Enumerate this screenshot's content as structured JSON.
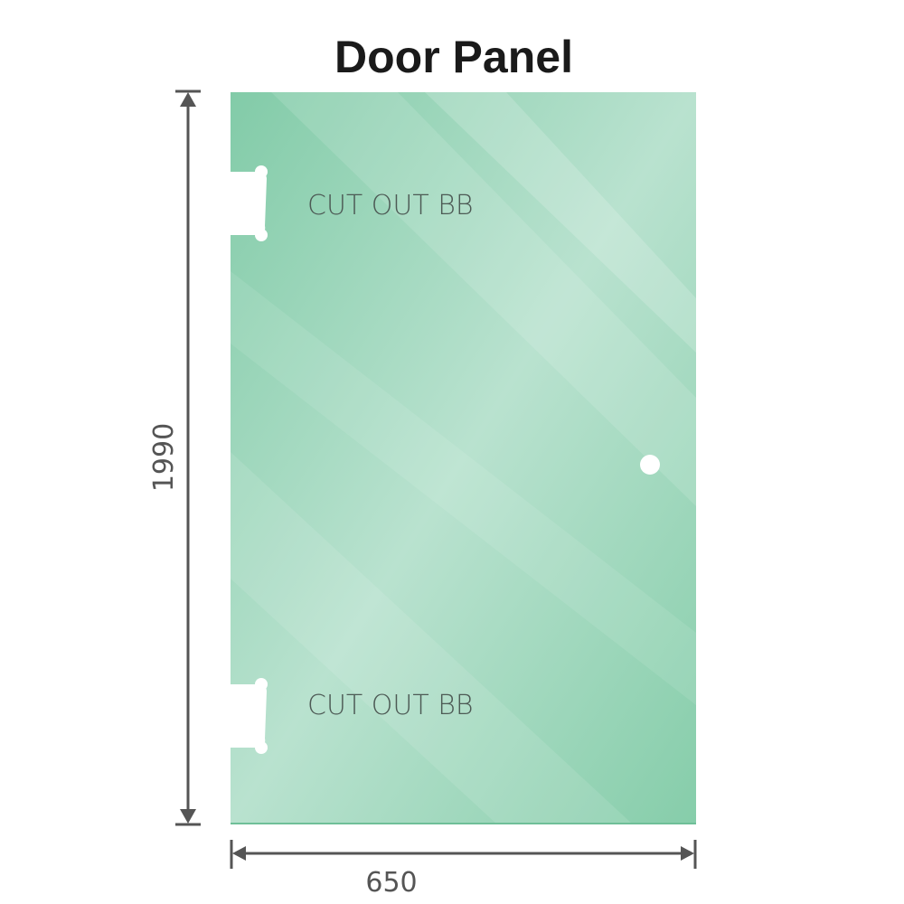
{
  "title": "Door Panel",
  "cutouts": [
    {
      "label": "CUT OUT BB"
    },
    {
      "label": "CUT OUT BB"
    }
  ],
  "dimensions": {
    "height": "1990",
    "width": "650"
  },
  "colors": {
    "glass": "#8fd0b0",
    "glass_light": "#c4e6d6",
    "dimension_line": "#555555"
  }
}
